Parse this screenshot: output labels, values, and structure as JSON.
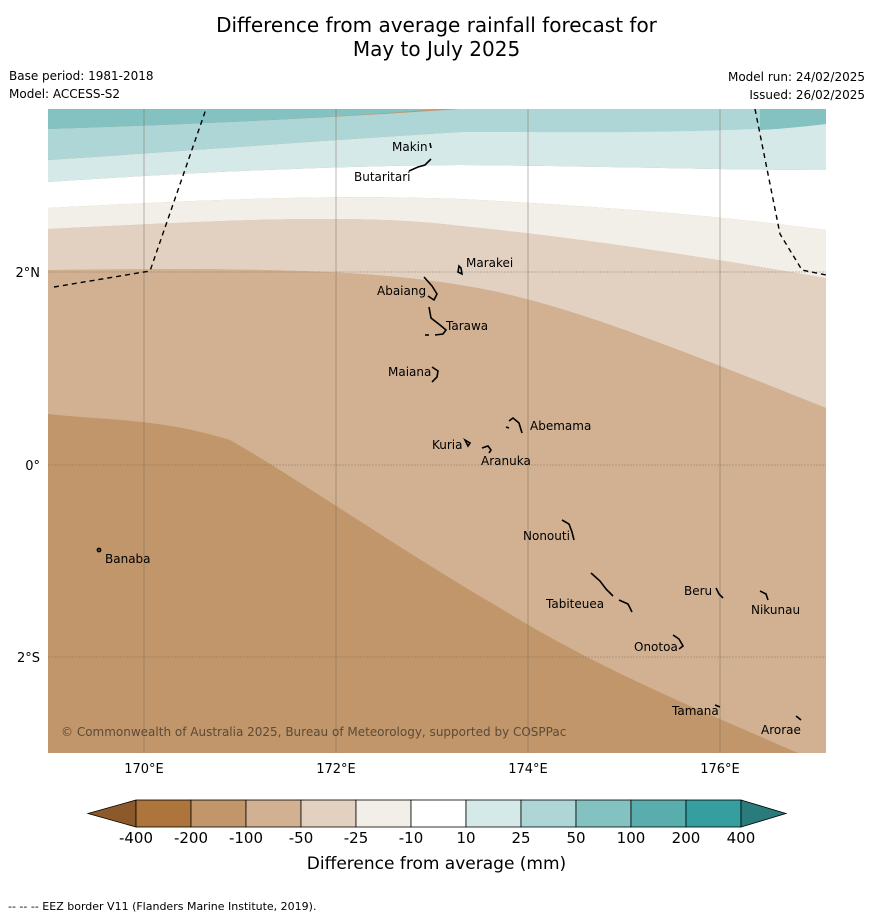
{
  "title_line1": "Difference from average rainfall forecast for",
  "title_line2": "May to July 2025",
  "meta": {
    "base_period": "Base period: 1981-2018",
    "model": "Model: ACCESS-S2",
    "model_run": "Model run: 24/02/2025",
    "issued": "Issued: 26/02/2025"
  },
  "map": {
    "lat_labels": [
      "2°N",
      "0°",
      "2°S"
    ],
    "lon_labels": [
      "170°E",
      "172°E",
      "174°E",
      "176°E"
    ],
    "copyright": "© Commonwealth of Australia 2025, Bureau of Meteorology, supported by COSPPac",
    "islands": [
      {
        "name": "Makin"
      },
      {
        "name": "Butaritari"
      },
      {
        "name": "Marakei"
      },
      {
        "name": "Abaiang"
      },
      {
        "name": "Tarawa"
      },
      {
        "name": "Maiana"
      },
      {
        "name": "Abemama"
      },
      {
        "name": "Kuria"
      },
      {
        "name": "Aranuka"
      },
      {
        "name": "Banaba"
      },
      {
        "name": "Nonouti"
      },
      {
        "name": "Beru"
      },
      {
        "name": "Nikunau"
      },
      {
        "name": "Tabiteuea"
      },
      {
        "name": "Onotoa"
      },
      {
        "name": "Tamana"
      },
      {
        "name": "Arorae"
      }
    ]
  },
  "colorbar": {
    "title": "Difference from average (mm)",
    "tick_labels": [
      "-400",
      "-200",
      "-100",
      "-50",
      "-25",
      "-10",
      "10",
      "25",
      "50",
      "100",
      "200",
      "400"
    ],
    "colors": [
      "#8c5a2a",
      "#ad743b",
      "#c0966a",
      "#d1b191",
      "#e2d1c1",
      "#f2eee8",
      "#ffffff",
      "#d5e9e9",
      "#afd6d6",
      "#84c1c1",
      "#5aadad",
      "#359e9e",
      "#2a7b7b"
    ]
  },
  "footer": "--  --  -- EEZ border V11 (Flanders Marine Institute, 2019)."
}
